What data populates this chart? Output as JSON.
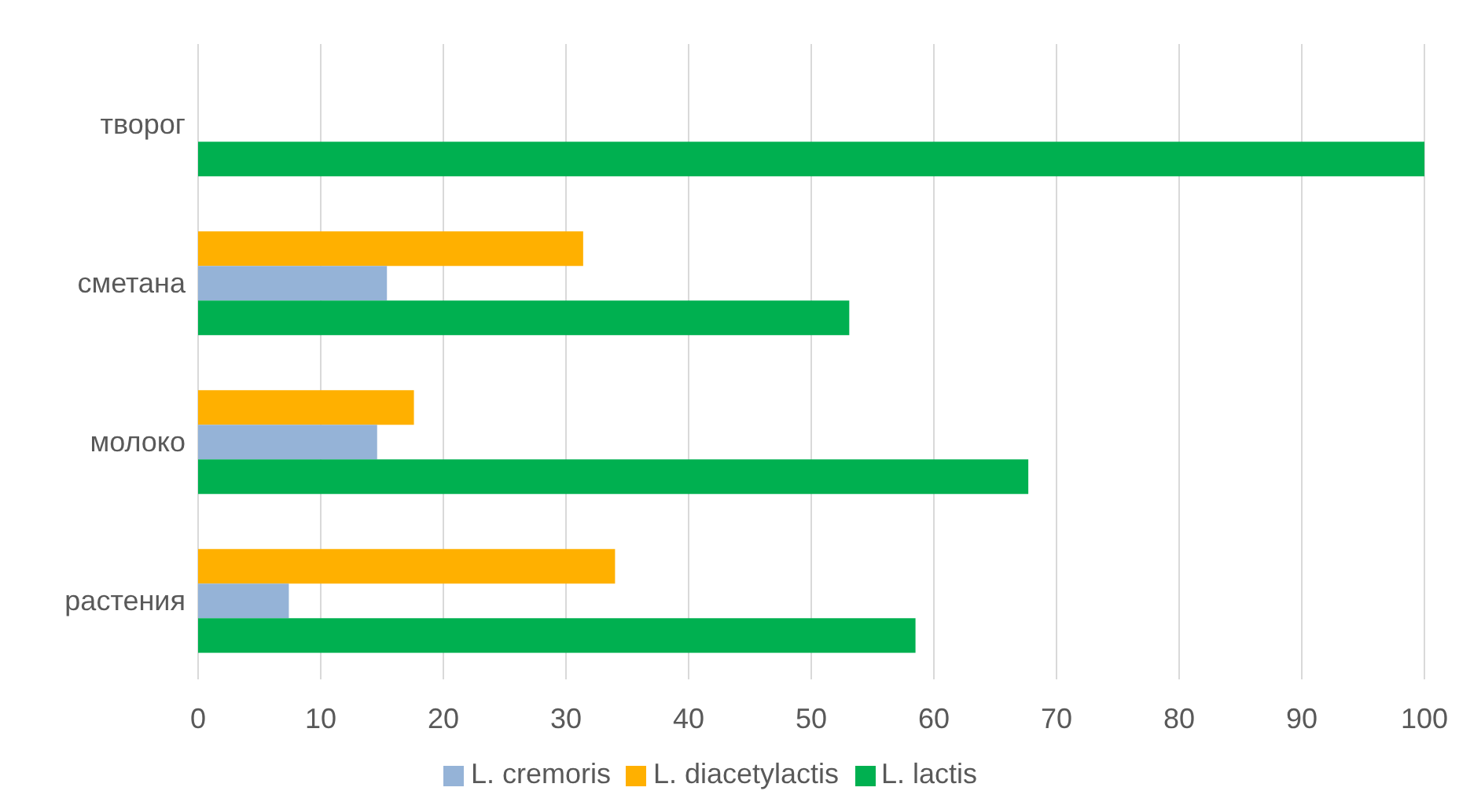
{
  "chart_data": {
    "type": "bar",
    "orientation": "horizontal",
    "categories": [
      "творог",
      "сметана",
      "молоко",
      "растения"
    ],
    "series": [
      {
        "name": "L. diacetylactis",
        "color": "#ffb000",
        "values": [
          null,
          31.4,
          17.6,
          34.0
        ]
      },
      {
        "name": "L. cremoris",
        "color": "#95b3d7",
        "values": [
          null,
          15.4,
          14.6,
          7.4
        ]
      },
      {
        "name": "L. lactis",
        "color": "#00b050",
        "values": [
          100,
          53.1,
          67.7,
          58.5
        ]
      }
    ],
    "xlim": [
      0,
      100
    ],
    "xticks": [
      0,
      10,
      20,
      30,
      40,
      50,
      60,
      70,
      80,
      90,
      100
    ],
    "grid": "x",
    "legend": "bottom"
  }
}
